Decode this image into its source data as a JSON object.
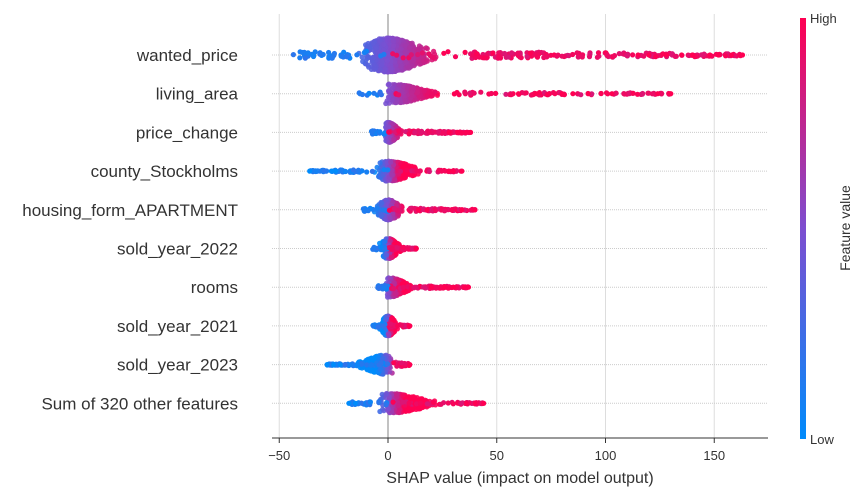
{
  "chart_data": {
    "type": "scatter",
    "subtype": "shap-beeswarm",
    "title": "",
    "xlabel": "SHAP value (impact on model output)",
    "ylabel": "",
    "xlim": [
      -52,
      174
    ],
    "x_ticks": [
      -50,
      0,
      50,
      100,
      150
    ],
    "grid": true,
    "features": [
      {
        "name": "wanted_price",
        "min": -44,
        "max": 163,
        "core_low": -20,
        "core_high": 28,
        "outliers": [
          115,
          120,
          128,
          135,
          140,
          148,
          152,
          158,
          163
        ]
      },
      {
        "name": "living_area",
        "min": -15,
        "max": 130,
        "core_low": -3,
        "core_high": 28,
        "outliers": [
          60,
          68,
          74,
          80,
          85,
          92,
          103,
          124,
          130
        ]
      },
      {
        "name": "price_change",
        "min": -8,
        "max": 38,
        "core_low": -3,
        "core_high": 8,
        "outliers": [
          28,
          32,
          38
        ]
      },
      {
        "name": "county_Stockholms",
        "min": -36,
        "max": 34,
        "core_low": -10,
        "core_high": 20,
        "outliers": [
          -36,
          -26,
          -24,
          28,
          30,
          34
        ]
      },
      {
        "name": "housing_form_APARTMENT",
        "min": -12,
        "max": 40,
        "core_low": -8,
        "core_high": 10,
        "outliers": [
          14,
          18,
          34,
          40
        ]
      },
      {
        "name": "sold_year_2022",
        "min": -7,
        "max": 13,
        "core_low": -5,
        "core_high": 8,
        "outliers": [
          13
        ]
      },
      {
        "name": "rooms",
        "min": -5,
        "max": 37,
        "core_low": -2,
        "core_high": 14,
        "outliers": [
          20,
          26,
          30,
          35,
          37
        ]
      },
      {
        "name": "sold_year_2021",
        "min": -7,
        "max": 10,
        "core_low": -5,
        "core_high": 6,
        "outliers": [
          10
        ]
      },
      {
        "name": "sold_year_2023",
        "min": -28,
        "max": 10,
        "core_low": -18,
        "core_high": 5,
        "outliers": [
          -28,
          -25,
          -22,
          10
        ]
      },
      {
        "name": "Sum of 320 other features",
        "min": -18,
        "max": 44,
        "core_low": -8,
        "core_high": 28,
        "outliers": [
          -18,
          -15,
          36,
          40,
          44
        ]
      }
    ],
    "colorbar": {
      "title": "Feature value",
      "high_label": "High",
      "low_label": "Low",
      "low_color": "#008bfb",
      "high_color": "#ff0052"
    }
  }
}
